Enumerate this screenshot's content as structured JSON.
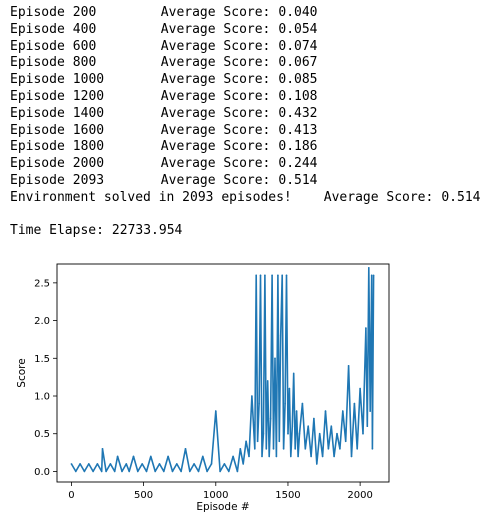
{
  "output": {
    "episode_lines": [
      {
        "label": "Episode",
        "episode": "200",
        "score_label": "Average Score:",
        "score": "0.040"
      },
      {
        "label": "Episode",
        "episode": "400",
        "score_label": "Average Score:",
        "score": "0.054"
      },
      {
        "label": "Episode",
        "episode": "600",
        "score_label": "Average Score:",
        "score": "0.074"
      },
      {
        "label": "Episode",
        "episode": "800",
        "score_label": "Average Score:",
        "score": "0.067"
      },
      {
        "label": "Episode",
        "episode": "1000",
        "score_label": "Average Score:",
        "score": "0.085"
      },
      {
        "label": "Episode",
        "episode": "1200",
        "score_label": "Average Score:",
        "score": "0.108"
      },
      {
        "label": "Episode",
        "episode": "1400",
        "score_label": "Average Score:",
        "score": "0.432"
      },
      {
        "label": "Episode",
        "episode": "1600",
        "score_label": "Average Score:",
        "score": "0.413"
      },
      {
        "label": "Episode",
        "episode": "1800",
        "score_label": "Average Score:",
        "score": "0.186"
      },
      {
        "label": "Episode",
        "episode": "2000",
        "score_label": "Average Score:",
        "score": "0.244"
      },
      {
        "label": "Episode",
        "episode": "2093",
        "score_label": "Average Score:",
        "score": "0.514"
      }
    ],
    "solved_text": "Environment solved in 2093 episodes!",
    "solved_score_label": "Average Score:",
    "solved_score": "0.514",
    "time_label": "Time Elapse:",
    "time_value": "22733.954"
  },
  "chart_data": {
    "type": "line",
    "title": "",
    "xlabel": "Episode #",
    "ylabel": "Score",
    "xlim": [
      -100,
      2200
    ],
    "ylim": [
      -0.14,
      2.75
    ],
    "xticks": [
      0,
      500,
      1000,
      1500,
      2000
    ],
    "yticks": [
      0.0,
      0.5,
      1.0,
      1.5,
      2.0,
      2.5
    ],
    "xtick_labels": [
      "0",
      "500",
      "1000",
      "1500",
      "2000"
    ],
    "ytick_labels": [
      "0.0",
      "0.5",
      "1.0",
      "1.5",
      "2.0",
      "2.5"
    ],
    "grid": false,
    "line_color": "#1f77b4",
    "series": [
      {
        "x": [
          0,
          30,
          60,
          90,
          120,
          150,
          180,
          210,
          215,
          240,
          270,
          300,
          320,
          350,
          380,
          400,
          430,
          460,
          490,
          520,
          550,
          580,
          610,
          640,
          670,
          700,
          730,
          760,
          790,
          820,
          850,
          880,
          910,
          940,
          970,
          1000,
          1030,
          1060,
          1090,
          1120,
          1150,
          1170,
          1190,
          1210,
          1230,
          1250,
          1270,
          1280,
          1290,
          1300,
          1310,
          1320,
          1330,
          1340,
          1350,
          1360,
          1370,
          1380,
          1390,
          1400,
          1410,
          1420,
          1430,
          1440,
          1450,
          1460,
          1470,
          1480,
          1490,
          1500,
          1510,
          1520,
          1530,
          1540,
          1550,
          1560,
          1570,
          1580,
          1600,
          1620,
          1640,
          1660,
          1680,
          1700,
          1720,
          1740,
          1760,
          1780,
          1800,
          1820,
          1840,
          1860,
          1880,
          1900,
          1920,
          1940,
          1960,
          1980,
          2000,
          2020,
          2040,
          2050,
          2060,
          2070,
          2080,
          2085,
          2093
        ],
        "y": [
          0.1,
          0.0,
          0.1,
          0.0,
          0.1,
          0.0,
          0.1,
          0.0,
          0.3,
          0.0,
          0.1,
          0.0,
          0.2,
          0.0,
          0.1,
          0.0,
          0.2,
          0.0,
          0.1,
          0.0,
          0.2,
          0.0,
          0.1,
          0.0,
          0.2,
          0.0,
          0.1,
          0.0,
          0.3,
          0.0,
          0.1,
          0.0,
          0.2,
          0.0,
          0.1,
          0.8,
          0.0,
          0.1,
          0.0,
          0.2,
          0.0,
          0.3,
          0.1,
          0.4,
          0.2,
          1.0,
          0.3,
          2.6,
          0.4,
          0.9,
          2.6,
          0.2,
          0.5,
          2.6,
          0.3,
          1.2,
          0.2,
          0.7,
          2.6,
          0.3,
          1.5,
          0.2,
          2.6,
          0.4,
          1.8,
          2.6,
          0.3,
          0.9,
          2.6,
          0.5,
          1.1,
          0.2,
          0.6,
          1.3,
          0.3,
          0.8,
          0.2,
          0.5,
          0.9,
          0.3,
          0.6,
          0.2,
          0.7,
          0.1,
          0.5,
          0.2,
          0.8,
          0.3,
          0.6,
          0.2,
          0.5,
          0.3,
          0.8,
          0.4,
          1.4,
          0.2,
          0.9,
          0.3,
          1.1,
          0.5,
          1.9,
          0.6,
          2.7,
          0.8,
          2.6,
          0.3,
          2.6
        ]
      }
    ]
  }
}
